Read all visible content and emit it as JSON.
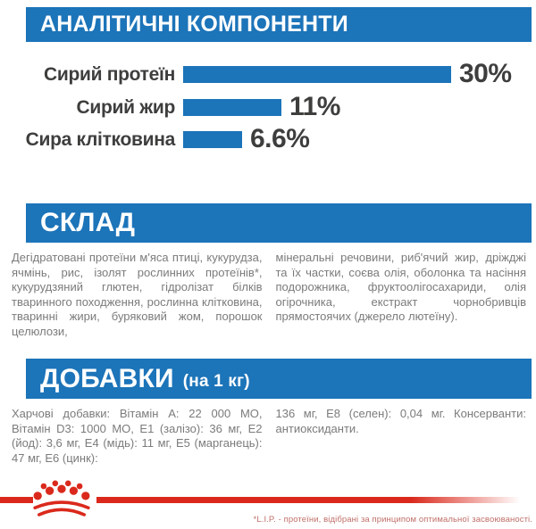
{
  "colors": {
    "blue": "#1C74B9",
    "red": "#DA291C",
    "label_dark": "#3E3E3D",
    "body_text": "#7C7B7B",
    "footnote_red": "#C0706A"
  },
  "sections": {
    "analytical": {
      "title": "АНАЛІТИЧНІ КОМПОНЕНТИ"
    },
    "composition": {
      "title": "СКЛАД",
      "col_left": "Дегідратовані протеїни м'яса птиці, кукурудза, ячмінь, рис, ізолят рослинних протеїнів*, кукурудзяний глютен, гідролізат білків тваринного походження, рослинна клітковина, тваринні жири, буряковий жом, порошок целюлози,",
      "col_right": "мінеральні речовини, риб'ячий жир, дріжджі та їх частки, соєва олія, оболонка та насіння подорожника, фруктоолігосахариди, олія огірочника, екстракт чорнобривців прямостоячих (джерело лютеїну)."
    },
    "additives": {
      "title": "ДОБАВКИ",
      "title_suffix": "(на 1 кг)",
      "col_left": "Харчові добавки: Вітамін А: 22 000 МО, Вітамін D3: 1000 МО, Е1 (залізо): 36 мг, Е2 (йод): 3,6 мг, Е4 (мідь): 11 мг, Е5 (марганець): 47 мг, Е6 (цинк):",
      "col_right": "136 мг, Е8 (селен): 0,04 мг. Консерванти: антиоксиданти."
    }
  },
  "chart_data": {
    "type": "bar",
    "orientation": "horizontal",
    "title": "АНАЛІТИЧНІ КОМПОНЕНТИ",
    "categories": [
      "Сирий протеїн",
      "Сирий жир",
      "Сира клітковина"
    ],
    "values": [
      30,
      11,
      6.6
    ],
    "value_labels": [
      "30%",
      "11%",
      "6.6%"
    ],
    "unit": "%",
    "xlim": [
      0,
      30
    ],
    "grid": false,
    "legend": false,
    "bar_color": "#1C74B9"
  },
  "footer": {
    "logo": "royal-canin-crown",
    "footnote": "*L.I.P. - протеїни, відібрані за принципом оптимальної засвоюваності."
  }
}
